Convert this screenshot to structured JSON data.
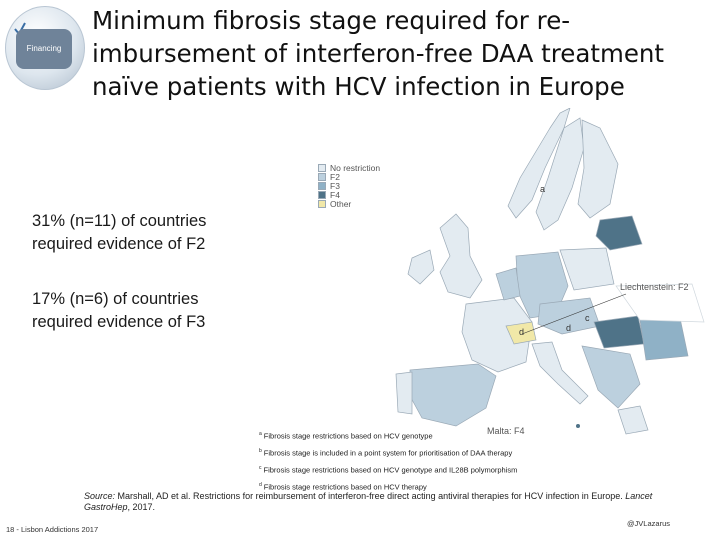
{
  "badge": {
    "label": "Financing",
    "icon": "check-mark-icon"
  },
  "title": "Minimum fibrosis stage required for re-imbursement of interferon-free DAA treatment naïve patients with HCV infection in Europe",
  "stats": [
    {
      "line1": "31% (n=11) of countries",
      "line2": "required evidence of F2"
    },
    {
      "line1": "17% (n=6) of countries",
      "line2": "required evidence of F3"
    }
  ],
  "map": {
    "legend": [
      {
        "label": "No restriction",
        "color": "#e3ebf1"
      },
      {
        "label": "F2",
        "color": "#bcd0de"
      },
      {
        "label": "F3",
        "color": "#8fb1c6"
      },
      {
        "label": "F4",
        "color": "#4f7388"
      },
      {
        "label": "Other",
        "color": "#f1e8a8"
      }
    ],
    "annotations": [
      "a",
      "c",
      "d",
      "d"
    ],
    "liechtenstein": "Liechtenstein: F2",
    "malta": "Malta: F4"
  },
  "footnotes": [
    {
      "mark": "a",
      "text": "Fibrosis stage restrictions based on HCV genotype"
    },
    {
      "mark": "b",
      "text": "Fibrosis stage is included in a point system for prioritisation of DAA therapy"
    },
    {
      "mark": "c",
      "text": "Fibrosis stage restrictions based on HCV genotype and IL28B polymorphism"
    },
    {
      "mark": "d",
      "text": "Fibrosis stage restrictions based on HCV therapy"
    }
  ],
  "source": {
    "prefix": "Source:",
    "text": " Marshall, AD et al. Restrictions for reimbursement of interferon-free direct acting antiviral therapies for HCV infection in Europe.",
    "journal": "Lancet GastroHep",
    "year": ", 2017."
  },
  "footer": {
    "left": "18 - Lisbon Addictions 2017",
    "right": "@JVLazarus"
  }
}
